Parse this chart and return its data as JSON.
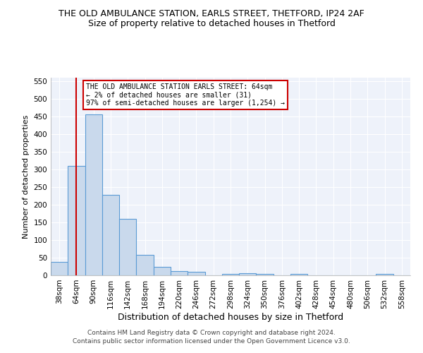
{
  "title": "THE OLD AMBULANCE STATION, EARLS STREET, THETFORD, IP24 2AF",
  "subtitle": "Size of property relative to detached houses in Thetford",
  "xlabel": "Distribution of detached houses by size in Thetford",
  "ylabel": "Number of detached properties",
  "categories": [
    "38sqm",
    "64sqm",
    "90sqm",
    "116sqm",
    "142sqm",
    "168sqm",
    "194sqm",
    "220sqm",
    "246sqm",
    "272sqm",
    "298sqm",
    "324sqm",
    "350sqm",
    "376sqm",
    "402sqm",
    "428sqm",
    "454sqm",
    "480sqm",
    "506sqm",
    "532sqm",
    "558sqm"
  ],
  "values": [
    38,
    311,
    457,
    228,
    160,
    58,
    25,
    13,
    10,
    0,
    5,
    6,
    5,
    0,
    4,
    0,
    0,
    0,
    0,
    5,
    0
  ],
  "bar_color": "#c9d9ec",
  "bar_edge_color": "#5b9bd5",
  "highlight_index": 1,
  "highlight_line_color": "#cc0000",
  "annotation_text": "THE OLD AMBULANCE STATION EARLS STREET: 64sqm\n← 2% of detached houses are smaller (31)\n97% of semi-detached houses are larger (1,254) →",
  "annotation_box_color": "#ffffff",
  "annotation_box_edge": "#cc0000",
  "ylim": [
    0,
    560
  ],
  "yticks": [
    0,
    50,
    100,
    150,
    200,
    250,
    300,
    350,
    400,
    450,
    500,
    550
  ],
  "footer": "Contains HM Land Registry data © Crown copyright and database right 2024.\nContains public sector information licensed under the Open Government Licence v3.0.",
  "background_color": "#ffffff",
  "plot_background": "#eef2fa",
  "grid_color": "#ffffff",
  "title_fontsize": 9,
  "subtitle_fontsize": 9,
  "xlabel_fontsize": 9,
  "ylabel_fontsize": 8,
  "tick_fontsize": 7.5,
  "footer_fontsize": 6.5
}
